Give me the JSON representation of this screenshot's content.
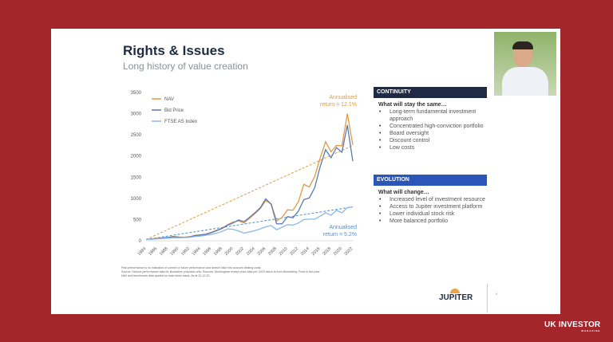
{
  "slide": {
    "title": "Rights & Issues",
    "subtitle": "Long history of value creation",
    "continuity": {
      "header": "CONTINUITY",
      "subheading": "What will stay the same…",
      "items": [
        "Long-term fundamental investment approach",
        "Concentrated high-conviction portfolio",
        "Board oversight",
        "Discount control",
        "Low costs"
      ],
      "color": "#1f2a44"
    },
    "evolution": {
      "header": "EVOLUTION",
      "subheading": "What will change…",
      "items": [
        "Increased level of investment resource",
        "Access to Jupiter investment platform",
        "Lower individual stock risk",
        "More balanced portfolio"
      ],
      "color": "#2a56b8"
    },
    "footnote": [
      "Past performance is no indication of current or future performance and doesn't take into account dealing costs.",
      "Source: Historic performance data for illustrative purposes only.  Sources: Morningstar except price data pre-2015 which is from Bloomberg.  Price is bid price.",
      "NAV and benchmark data quoted on total return basis. As at 31.12.22."
    ],
    "logo": "JUPITER",
    "page_number": "4"
  },
  "brand": {
    "name": "UK INVESTOR",
    "tagline": "MAGAZINE"
  },
  "chart_data": {
    "type": "line",
    "ylim": [
      0,
      3500
    ],
    "yticks": [
      0,
      500,
      1000,
      1500,
      2000,
      2500,
      3000,
      3500
    ],
    "xticks": [
      1984,
      1986,
      1988,
      1990,
      1992,
      1994,
      1996,
      1998,
      2000,
      2002,
      2004,
      2006,
      2008,
      2010,
      2012,
      2014,
      2016,
      2018,
      2020,
      2022
    ],
    "x": [
      1984,
      1985,
      1986,
      1987,
      1988,
      1989,
      1990,
      1991,
      1992,
      1993,
      1994,
      1995,
      1996,
      1997,
      1998,
      1999,
      2000,
      2001,
      2002,
      2003,
      2004,
      2005,
      2006,
      2007,
      2008,
      2009,
      2010,
      2011,
      2012,
      2013,
      2014,
      2015,
      2016,
      2017,
      2018,
      2019,
      2020,
      2021,
      2022
    ],
    "series": [
      {
        "name": "NAV",
        "color": "#e09a45",
        "values": [
          30,
          40,
          55,
          70,
          80,
          100,
          90,
          85,
          95,
          130,
          140,
          160,
          200,
          250,
          300,
          380,
          440,
          470,
          420,
          530,
          640,
          760,
          950,
          870,
          470,
          550,
          730,
          720,
          920,
          1330,
          1270,
          1520,
          1950,
          2340,
          2100,
          2250,
          2240,
          3000,
          2260
        ]
      },
      {
        "name": "Bid Price",
        "color": "#5b78b0",
        "values": [
          30,
          40,
          50,
          65,
          75,
          95,
          85,
          80,
          90,
          120,
          135,
          150,
          190,
          240,
          290,
          370,
          420,
          490,
          450,
          550,
          660,
          780,
          990,
          860,
          400,
          400,
          570,
          540,
          700,
          970,
          1010,
          1250,
          1750,
          2150,
          1960,
          2200,
          2090,
          2730,
          1880
        ]
      },
      {
        "name": "FTSE AS Index",
        "color": "#8ab8e8",
        "values": [
          30,
          35,
          45,
          55,
          60,
          70,
          70,
          75,
          80,
          100,
          110,
          130,
          150,
          180,
          220,
          280,
          270,
          230,
          180,
          210,
          240,
          280,
          330,
          360,
          260,
          320,
          380,
          370,
          420,
          500,
          510,
          510,
          580,
          660,
          600,
          720,
          660,
          780,
          800
        ]
      }
    ],
    "trendlines": [
      {
        "color": "#e09a45",
        "from": [
          1984,
          30
        ],
        "to": [
          2022,
          2250
        ],
        "label": [
          "Annualised",
          "return = 12.1%"
        ]
      },
      {
        "color": "#4a90e0",
        "from": [
          1984,
          30
        ],
        "to": [
          2022,
          800
        ],
        "label": [
          "Annualised",
          "return = 5.2%"
        ]
      }
    ]
  }
}
